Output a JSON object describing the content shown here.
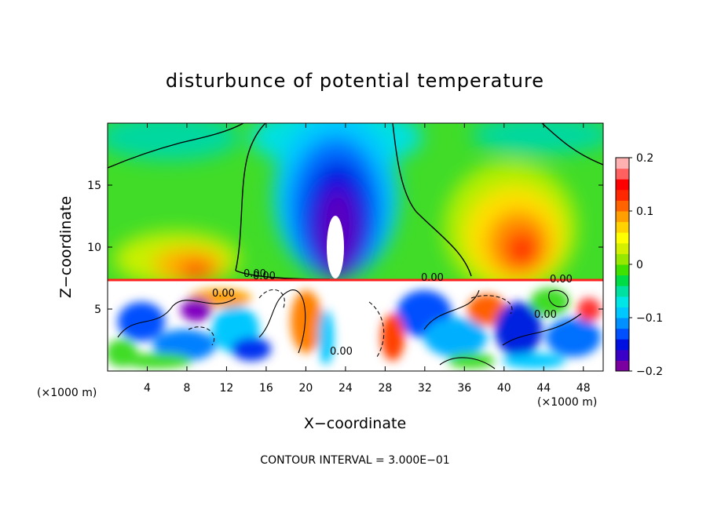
{
  "chart_data": {
    "type": "heatmap",
    "title": "disturbunce of potential temperature",
    "xlabel": "X−coordinate",
    "ylabel": "Z−coordinate",
    "x_unit_left": "(×1000 m)",
    "x_unit_right": "(×1000 m)",
    "xlim": [
      0,
      50
    ],
    "ylim": [
      0,
      20
    ],
    "x_ticks": [
      4,
      8,
      12,
      16,
      20,
      24,
      28,
      32,
      36,
      40,
      44,
      48
    ],
    "x_tick_labels": [
      "4",
      "8",
      "12",
      "16",
      "20",
      "24",
      "28",
      "32",
      "36",
      "40",
      "44",
      "48"
    ],
    "y_ticks": [
      5,
      10,
      15
    ],
    "y_tick_labels": [
      "5",
      "10",
      "15"
    ],
    "colorbar": {
      "min": -0.2,
      "max": 0.2,
      "ticks": [
        0.2,
        0.1,
        0,
        -0.1,
        -0.2
      ],
      "tick_labels": [
        "0.2",
        "0.1",
        "0",
        "−0.1",
        "−0.2"
      ],
      "colors": [
        "#7b00a0",
        "#3a00c8",
        "#0010e0",
        "#0050ff",
        "#0090ff",
        "#00c8ff",
        "#00e6e6",
        "#00e0a0",
        "#00dc46",
        "#40e000",
        "#96e800",
        "#d2f000",
        "#ffff00",
        "#ffd200",
        "#ffa000",
        "#ff6400",
        "#ff2800",
        "#ff0000",
        "#ff6060",
        "#ffb0b0"
      ]
    },
    "features": [
      {
        "kind": "cold anomaly",
        "x_center": 22.5,
        "z_center": 13.5,
        "value": -0.2
      },
      {
        "kind": "warm anomaly",
        "x_center": 42,
        "z_center": 10,
        "value": 0.15
      },
      {
        "kind": "warm anomaly",
        "x_center": 9,
        "z_center": 9,
        "value": 0.12
      },
      {
        "kind": "turbulent layer",
        "z_top": 7.2
      }
    ],
    "contour_labels": [
      "0.00",
      "0.00",
      "0.00",
      "0.00",
      "0.00",
      "0.00",
      "0.00"
    ],
    "contour_interval_text": "CONTOUR INTERVAL = 3.000E−01"
  }
}
